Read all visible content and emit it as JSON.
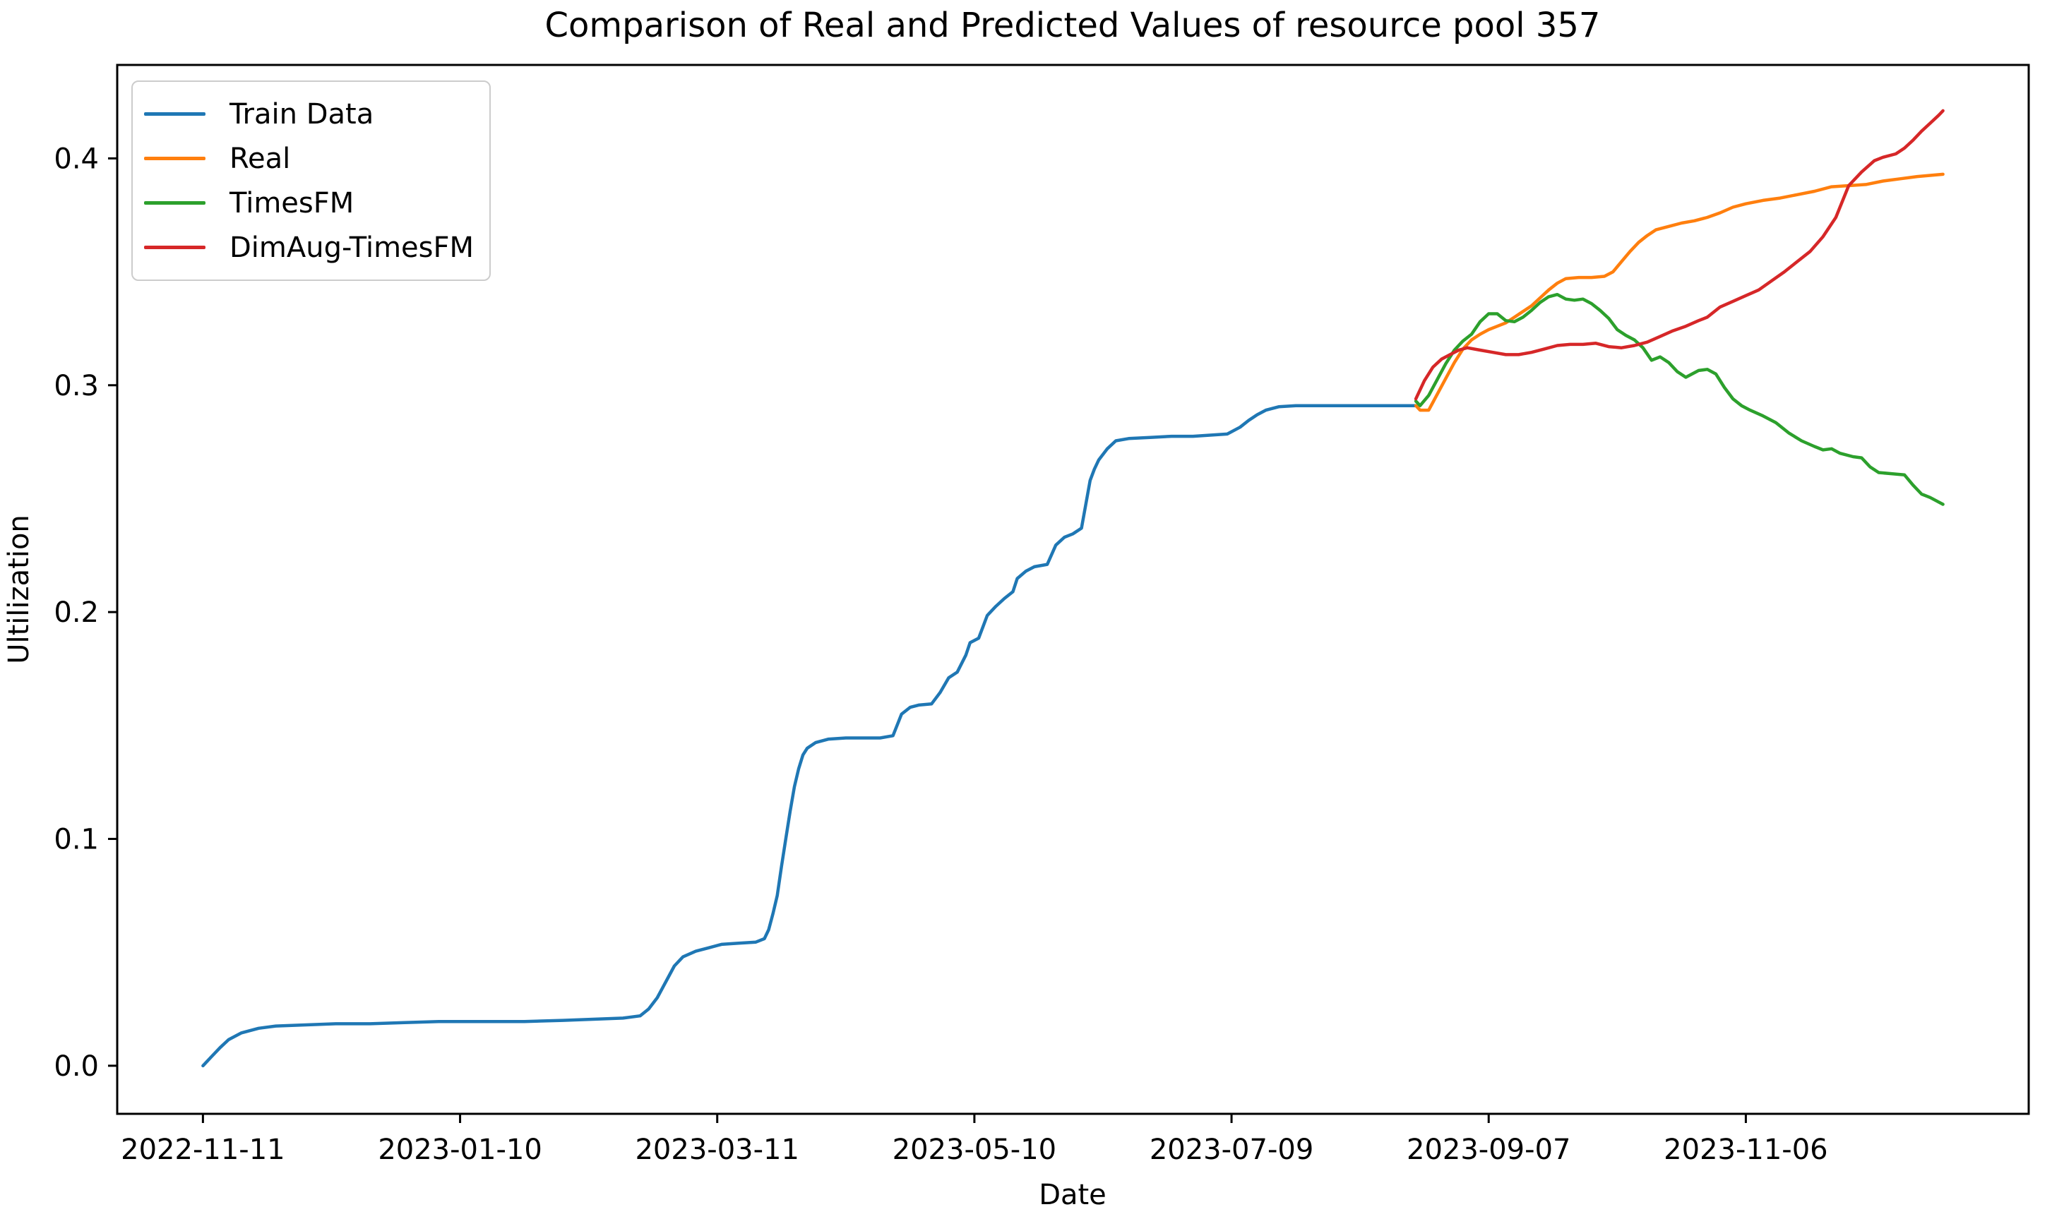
{
  "chart_data": {
    "type": "line",
    "title": "Comparison of Real and Predicted Values of resource pool 357",
    "xlabel": "Date",
    "ylabel": "Ultilization",
    "x_tick_labels": [
      "2022-11-11",
      "2023-01-10",
      "2023-03-11",
      "2023-05-10",
      "2023-07-09",
      "2023-09-07",
      "2023-11-06"
    ],
    "y_ticks": [
      0.0,
      0.1,
      0.2,
      0.3,
      0.4
    ],
    "xlim": [
      "2022-10-22",
      "2024-01-11"
    ],
    "ylim": [
      -0.0212,
      0.4412
    ],
    "grid": false,
    "legend_position": "upper left",
    "series": [
      {
        "name": "Train Data",
        "color": "#1f77b4",
        "points": [
          [
            "2022-11-11",
            0.0
          ],
          [
            "2022-11-13",
            0.004
          ],
          [
            "2022-11-15",
            0.008
          ],
          [
            "2022-11-17",
            0.0115
          ],
          [
            "2022-11-20",
            0.0145
          ],
          [
            "2022-11-24",
            0.0165
          ],
          [
            "2022-11-28",
            0.0175
          ],
          [
            "2022-12-05",
            0.018
          ],
          [
            "2022-12-12",
            0.0185
          ],
          [
            "2022-12-20",
            0.0185
          ],
          [
            "2022-12-28",
            0.019
          ],
          [
            "2023-01-05",
            0.0195
          ],
          [
            "2023-01-15",
            0.0195
          ],
          [
            "2023-01-25",
            0.0195
          ],
          [
            "2023-02-03",
            0.02
          ],
          [
            "2023-02-10",
            0.0205
          ],
          [
            "2023-02-17",
            0.021
          ],
          [
            "2023-02-21",
            0.022
          ],
          [
            "2023-02-23",
            0.025
          ],
          [
            "2023-02-25",
            0.03
          ],
          [
            "2023-02-27",
            0.037
          ],
          [
            "2023-03-01",
            0.044
          ],
          [
            "2023-03-03",
            0.048
          ],
          [
            "2023-03-06",
            0.0505
          ],
          [
            "2023-03-09",
            0.052
          ],
          [
            "2023-03-12",
            0.0535
          ],
          [
            "2023-03-16",
            0.054
          ],
          [
            "2023-03-20",
            0.0545
          ],
          [
            "2023-03-22",
            0.056
          ],
          [
            "2023-03-23",
            0.06
          ],
          [
            "2023-03-24",
            0.067
          ],
          [
            "2023-03-25",
            0.075
          ],
          [
            "2023-03-26",
            0.088
          ],
          [
            "2023-03-27",
            0.1
          ],
          [
            "2023-03-28",
            0.112
          ],
          [
            "2023-03-29",
            0.123
          ],
          [
            "2023-03-30",
            0.131
          ],
          [
            "2023-03-31",
            0.137
          ],
          [
            "2023-04-01",
            0.14
          ],
          [
            "2023-04-03",
            0.1425
          ],
          [
            "2023-04-06",
            0.144
          ],
          [
            "2023-04-10",
            0.1445
          ],
          [
            "2023-04-14",
            0.1445
          ],
          [
            "2023-04-18",
            0.1445
          ],
          [
            "2023-04-21",
            0.1455
          ],
          [
            "2023-04-23",
            0.155
          ],
          [
            "2023-04-25",
            0.158
          ],
          [
            "2023-04-27",
            0.159
          ],
          [
            "2023-04-30",
            0.1595
          ],
          [
            "2023-05-02",
            0.1645
          ],
          [
            "2023-05-04",
            0.171
          ],
          [
            "2023-05-06",
            0.1735
          ],
          [
            "2023-05-08",
            0.181
          ],
          [
            "2023-05-09",
            0.1865
          ],
          [
            "2023-05-11",
            0.1885
          ],
          [
            "2023-05-13",
            0.1985
          ],
          [
            "2023-05-15",
            0.2025
          ],
          [
            "2023-05-17",
            0.206
          ],
          [
            "2023-05-19",
            0.209
          ],
          [
            "2023-05-20",
            0.2148
          ],
          [
            "2023-05-22",
            0.218
          ],
          [
            "2023-05-24",
            0.22
          ],
          [
            "2023-05-27",
            0.221
          ],
          [
            "2023-05-29",
            0.2295
          ],
          [
            "2023-05-31",
            0.233
          ],
          [
            "2023-06-02",
            0.2345
          ],
          [
            "2023-06-04",
            0.237
          ],
          [
            "2023-06-05",
            0.2475
          ],
          [
            "2023-06-06",
            0.258
          ],
          [
            "2023-06-07",
            0.263
          ],
          [
            "2023-06-08",
            0.267
          ],
          [
            "2023-06-10",
            0.272
          ],
          [
            "2023-06-12",
            0.2755
          ],
          [
            "2023-06-15",
            0.2765
          ],
          [
            "2023-06-20",
            0.277
          ],
          [
            "2023-06-25",
            0.2775
          ],
          [
            "2023-06-30",
            0.2775
          ],
          [
            "2023-07-04",
            0.278
          ],
          [
            "2023-07-08",
            0.2785
          ],
          [
            "2023-07-11",
            0.2815
          ],
          [
            "2023-07-13",
            0.2845
          ],
          [
            "2023-07-15",
            0.287
          ],
          [
            "2023-07-17",
            0.289
          ],
          [
            "2023-07-20",
            0.2905
          ],
          [
            "2023-07-24",
            0.291
          ],
          [
            "2023-07-30",
            0.291
          ],
          [
            "2023-08-06",
            0.291
          ],
          [
            "2023-08-13",
            0.291
          ],
          [
            "2023-08-21",
            0.291
          ]
        ]
      },
      {
        "name": "Real",
        "color": "#ff7f0e",
        "points": [
          [
            "2023-08-21",
            0.291
          ],
          [
            "2023-08-22",
            0.289
          ],
          [
            "2023-08-24",
            0.289
          ],
          [
            "2023-08-26",
            0.296
          ],
          [
            "2023-08-28",
            0.303
          ],
          [
            "2023-08-30",
            0.31
          ],
          [
            "2023-09-01",
            0.316
          ],
          [
            "2023-09-03",
            0.32
          ],
          [
            "2023-09-05",
            0.3225
          ],
          [
            "2023-09-07",
            0.3245
          ],
          [
            "2023-09-09",
            0.326
          ],
          [
            "2023-09-11",
            0.3275
          ],
          [
            "2023-09-13",
            0.33
          ],
          [
            "2023-09-15",
            0.3325
          ],
          [
            "2023-09-17",
            0.335
          ],
          [
            "2023-09-19",
            0.3385
          ],
          [
            "2023-09-21",
            0.342
          ],
          [
            "2023-09-23",
            0.345
          ],
          [
            "2023-09-25",
            0.347
          ],
          [
            "2023-09-28",
            0.3475
          ],
          [
            "2023-10-01",
            0.3475
          ],
          [
            "2023-10-04",
            0.348
          ],
          [
            "2023-10-06",
            0.35
          ],
          [
            "2023-10-08",
            0.3545
          ],
          [
            "2023-10-10",
            0.359
          ],
          [
            "2023-10-12",
            0.363
          ],
          [
            "2023-10-14",
            0.366
          ],
          [
            "2023-10-16",
            0.3685
          ],
          [
            "2023-10-19",
            0.37
          ],
          [
            "2023-10-22",
            0.3715
          ],
          [
            "2023-10-25",
            0.3725
          ],
          [
            "2023-10-28",
            0.374
          ],
          [
            "2023-10-31",
            0.376
          ],
          [
            "2023-11-03",
            0.3785
          ],
          [
            "2023-11-06",
            0.38
          ],
          [
            "2023-11-10",
            0.3815
          ],
          [
            "2023-11-14",
            0.3825
          ],
          [
            "2023-11-18",
            0.384
          ],
          [
            "2023-11-22",
            0.3855
          ],
          [
            "2023-11-26",
            0.3875
          ],
          [
            "2023-11-30",
            0.388
          ],
          [
            "2023-12-04",
            0.3885
          ],
          [
            "2023-12-08",
            0.39
          ],
          [
            "2023-12-12",
            0.391
          ],
          [
            "2023-12-16",
            0.392
          ],
          [
            "2023-12-19",
            0.3925
          ],
          [
            "2023-12-22",
            0.393
          ]
        ]
      },
      {
        "name": "TimesFM",
        "color": "#2ca02c",
        "points": [
          [
            "2023-08-21",
            0.293
          ],
          [
            "2023-08-22",
            0.291
          ],
          [
            "2023-08-24",
            0.2955
          ],
          [
            "2023-08-26",
            0.3025
          ],
          [
            "2023-08-28",
            0.3095
          ],
          [
            "2023-08-30",
            0.3155
          ],
          [
            "2023-09-01",
            0.3195
          ],
          [
            "2023-09-03",
            0.3225
          ],
          [
            "2023-09-05",
            0.328
          ],
          [
            "2023-09-07",
            0.3315
          ],
          [
            "2023-09-09",
            0.3315
          ],
          [
            "2023-09-11",
            0.3285
          ],
          [
            "2023-09-13",
            0.328
          ],
          [
            "2023-09-15",
            0.33
          ],
          [
            "2023-09-17",
            0.333
          ],
          [
            "2023-09-19",
            0.3365
          ],
          [
            "2023-09-21",
            0.339
          ],
          [
            "2023-09-23",
            0.34
          ],
          [
            "2023-09-25",
            0.338
          ],
          [
            "2023-09-27",
            0.3375
          ],
          [
            "2023-09-29",
            0.338
          ],
          [
            "2023-10-01",
            0.336
          ],
          [
            "2023-10-03",
            0.333
          ],
          [
            "2023-10-05",
            0.3295
          ],
          [
            "2023-10-07",
            0.3245
          ],
          [
            "2023-10-09",
            0.322
          ],
          [
            "2023-10-11",
            0.32
          ],
          [
            "2023-10-13",
            0.3165
          ],
          [
            "2023-10-15",
            0.311
          ],
          [
            "2023-10-17",
            0.3125
          ],
          [
            "2023-10-19",
            0.31
          ],
          [
            "2023-10-21",
            0.306
          ],
          [
            "2023-10-23",
            0.3035
          ],
          [
            "2023-10-26",
            0.3065
          ],
          [
            "2023-10-28",
            0.307
          ],
          [
            "2023-10-30",
            0.305
          ],
          [
            "2023-11-01",
            0.299
          ],
          [
            "2023-11-03",
            0.294
          ],
          [
            "2023-11-05",
            0.291
          ],
          [
            "2023-11-07",
            0.289
          ],
          [
            "2023-11-10",
            0.2865
          ],
          [
            "2023-11-13",
            0.2835
          ],
          [
            "2023-11-16",
            0.279
          ],
          [
            "2023-11-19",
            0.2755
          ],
          [
            "2023-11-22",
            0.273
          ],
          [
            "2023-11-24",
            0.2715
          ],
          [
            "2023-11-26",
            0.272
          ],
          [
            "2023-11-28",
            0.27
          ],
          [
            "2023-12-01",
            0.2685
          ],
          [
            "2023-12-03",
            0.268
          ],
          [
            "2023-12-05",
            0.264
          ],
          [
            "2023-12-07",
            0.2615
          ],
          [
            "2023-12-10",
            0.261
          ],
          [
            "2023-12-13",
            0.2605
          ],
          [
            "2023-12-15",
            0.256
          ],
          [
            "2023-12-17",
            0.252
          ],
          [
            "2023-12-19",
            0.2505
          ],
          [
            "2023-12-22",
            0.2475
          ]
        ]
      },
      {
        "name": "DimAug-TimesFM",
        "color": "#d62728",
        "points": [
          [
            "2023-08-21",
            0.294
          ],
          [
            "2023-08-23",
            0.302
          ],
          [
            "2023-08-25",
            0.308
          ],
          [
            "2023-08-27",
            0.3115
          ],
          [
            "2023-08-29",
            0.3135
          ],
          [
            "2023-08-31",
            0.3155
          ],
          [
            "2023-09-02",
            0.3165
          ],
          [
            "2023-09-05",
            0.3155
          ],
          [
            "2023-09-08",
            0.3145
          ],
          [
            "2023-09-11",
            0.3135
          ],
          [
            "2023-09-14",
            0.3135
          ],
          [
            "2023-09-17",
            0.3145
          ],
          [
            "2023-09-20",
            0.316
          ],
          [
            "2023-09-23",
            0.3175
          ],
          [
            "2023-09-26",
            0.318
          ],
          [
            "2023-09-29",
            0.318
          ],
          [
            "2023-10-02",
            0.3185
          ],
          [
            "2023-10-05",
            0.317
          ],
          [
            "2023-10-08",
            0.3165
          ],
          [
            "2023-10-11",
            0.3175
          ],
          [
            "2023-10-14",
            0.319
          ],
          [
            "2023-10-17",
            0.3215
          ],
          [
            "2023-10-20",
            0.324
          ],
          [
            "2023-10-23",
            0.326
          ],
          [
            "2023-10-26",
            0.3285
          ],
          [
            "2023-10-28",
            0.33
          ],
          [
            "2023-10-31",
            0.3345
          ],
          [
            "2023-11-03",
            0.337
          ],
          [
            "2023-11-06",
            0.3395
          ],
          [
            "2023-11-09",
            0.342
          ],
          [
            "2023-11-12",
            0.346
          ],
          [
            "2023-11-15",
            0.35
          ],
          [
            "2023-11-18",
            0.3545
          ],
          [
            "2023-11-21",
            0.359
          ],
          [
            "2023-11-24",
            0.3655
          ],
          [
            "2023-11-27",
            0.374
          ],
          [
            "2023-11-30",
            0.388
          ],
          [
            "2023-12-03",
            0.394
          ],
          [
            "2023-12-06",
            0.399
          ],
          [
            "2023-12-08",
            0.4005
          ],
          [
            "2023-12-11",
            0.402
          ],
          [
            "2023-12-13",
            0.4045
          ],
          [
            "2023-12-15",
            0.408
          ],
          [
            "2023-12-17",
            0.412
          ],
          [
            "2023-12-19",
            0.4155
          ],
          [
            "2023-12-21",
            0.419
          ],
          [
            "2023-12-22",
            0.421
          ]
        ]
      }
    ]
  }
}
